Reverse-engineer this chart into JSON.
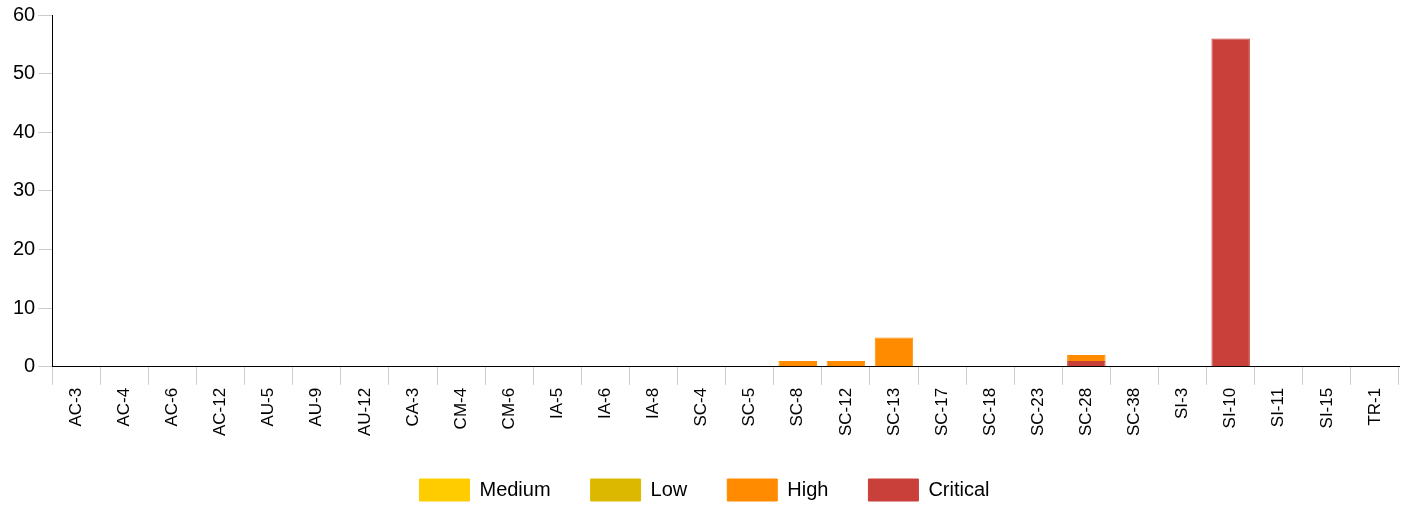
{
  "chart_data": {
    "type": "bar",
    "stacked": true,
    "categories": [
      "AC-3",
      "AC-4",
      "AC-6",
      "AC-12",
      "AU-5",
      "AU-9",
      "AU-12",
      "CA-3",
      "CM-4",
      "CM-6",
      "IA-5",
      "IA-6",
      "IA-8",
      "SC-4",
      "SC-5",
      "SC-8",
      "SC-12",
      "SC-13",
      "SC-17",
      "SC-18",
      "SC-23",
      "SC-28",
      "SC-38",
      "SI-3",
      "SI-10",
      "SI-11",
      "SI-15",
      "TR-1"
    ],
    "series": [
      {
        "name": "Critical",
        "color": "#c9403a",
        "values": [
          0,
          0,
          0,
          0,
          0,
          0,
          0,
          0,
          0,
          0,
          0,
          0,
          0,
          0,
          0,
          0,
          0,
          0,
          0,
          0,
          0,
          1,
          0,
          0,
          56,
          0,
          0,
          0
        ]
      },
      {
        "name": "High",
        "color": "#ff8c00",
        "values": [
          0,
          0,
          0,
          0,
          0,
          0,
          0,
          0,
          0,
          0,
          0,
          0,
          0,
          0,
          0,
          1,
          1,
          5,
          0,
          0,
          0,
          1,
          0,
          0,
          0,
          0,
          0,
          0
        ]
      },
      {
        "name": "Low",
        "color": "#ddb800",
        "values": [
          0,
          0,
          0,
          0,
          0,
          0,
          0,
          0,
          0,
          0,
          0,
          0,
          0,
          0,
          0,
          0,
          0,
          0,
          0,
          0,
          0,
          0,
          0,
          0,
          0,
          0,
          0,
          0
        ]
      },
      {
        "name": "Medium",
        "color": "#ffcc00",
        "values": [
          0,
          0,
          0,
          0,
          0,
          0,
          0,
          0,
          0,
          0,
          0,
          0,
          0,
          0,
          0,
          0,
          0,
          0,
          0,
          0,
          0,
          0,
          0,
          0,
          0,
          0,
          0,
          0
        ]
      }
    ],
    "ylim": [
      0,
      60
    ],
    "yticks": [
      0,
      10,
      20,
      30,
      40,
      50,
      60
    ],
    "grid": false,
    "legend": "bottom"
  }
}
